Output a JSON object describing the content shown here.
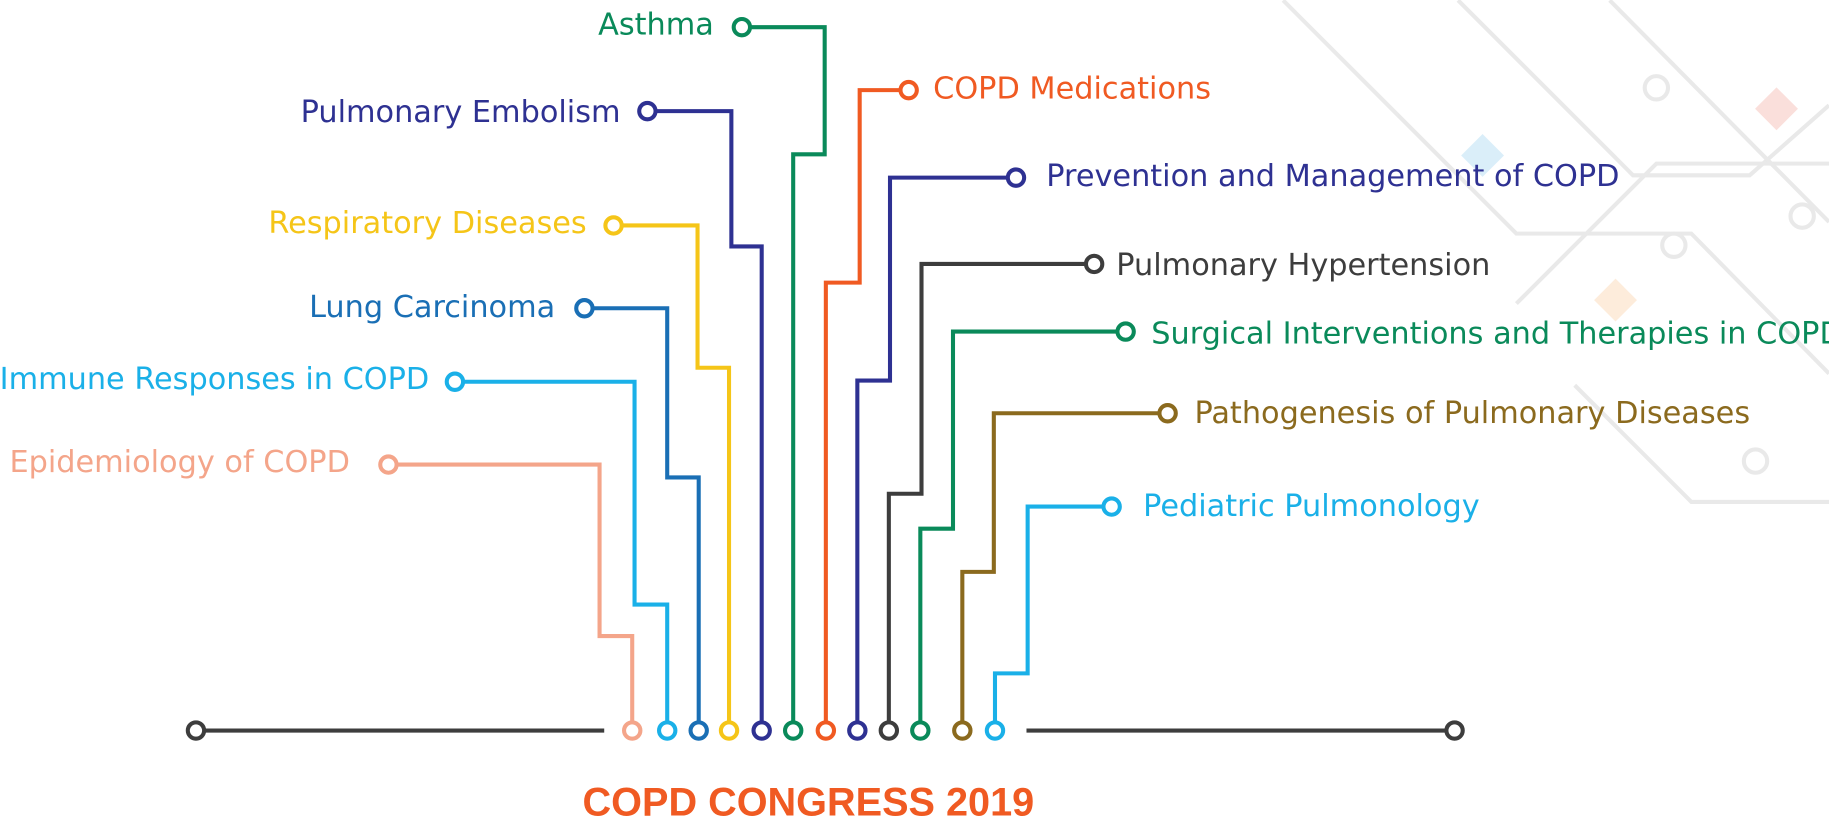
{
  "topics": [
    "Epidemiology of COPD",
    "Immune Responses in COPD",
    "Lung Carcinoma",
    "Respiratory Diseases",
    "Pulmonary Embolism",
    "Asthma",
    "COPD Medications",
    "Prevention and Management of COPD",
    "Pulmonary Hypertension",
    "Surgical Interventions and Therapies in COPD",
    "Pathogenesis of Pulmonary Diseases",
    "Pediatric Pulmonology"
  ],
  "title": "COPD CONGRESS 2019"
}
